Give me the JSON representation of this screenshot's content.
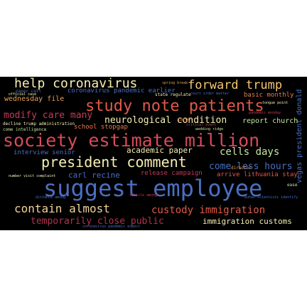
{
  "word_cloud": {
    "background": "#000000",
    "words": [
      {
        "text": "help coronavirus",
        "color": "#f6f0b4"
      },
      {
        "text": "forward trump",
        "color": "#f3c775"
      },
      {
        "text": "wednesday file",
        "color": "#e8a25a"
      },
      {
        "text": "coronavirus pandemic earlier",
        "color": "#4a6fc2"
      },
      {
        "text": "basic monthly",
        "color": "#e87a4e"
      },
      {
        "text": "study note patients",
        "color": "#e05a4a"
      },
      {
        "text": "modify care many",
        "color": "#c43a5a"
      },
      {
        "text": "neurological condition",
        "color": "#f6f0b4"
      },
      {
        "text": "report church",
        "color": "#c8e6a0"
      },
      {
        "text": "school stopgap",
        "color": "#e87a4e"
      },
      {
        "text": "society estimate million",
        "color": "#d84a5a"
      },
      {
        "text": "academic paper",
        "color": "#f6f0b4"
      },
      {
        "text": "cells days",
        "color": "#c8e6a0"
      },
      {
        "text": "president comment",
        "color": "#f6f0b4"
      },
      {
        "text": "interview senior",
        "color": "#4a6fc2"
      },
      {
        "text": "come less hours",
        "color": "#4a6fc2"
      },
      {
        "text": "carl recine",
        "color": "#4a6fc2"
      },
      {
        "text": "release campaign",
        "color": "#c43a5a"
      },
      {
        "text": "arrive lithuania stay",
        "color": "#e05a4a"
      },
      {
        "text": "suggest employee",
        "color": "#4a6fc2"
      },
      {
        "text": "contain almost",
        "color": "#f3d29a"
      },
      {
        "text": "custody immigration",
        "color": "#e05a4a"
      },
      {
        "text": "temporarily close public",
        "color": "#b8304e"
      },
      {
        "text": "immigration customs",
        "color": "#f6f0b4"
      },
      {
        "text": "vegas president donald",
        "color": "#4a6fc2"
      },
      {
        "text": "spring break",
        "color": "#e8a25a"
      },
      {
        "text": "state regulate",
        "color": "#f6f0b4"
      },
      {
        "text": "paper call",
        "color": "#4a6fc2"
      },
      {
        "text": "court order matter",
        "color": "#4a6fc2"
      },
      {
        "text": "tongue point",
        "color": "#f6f0b4"
      },
      {
        "text": "decline trump administration",
        "color": "#f6f0b4"
      },
      {
        "text": "come intelligence",
        "color": "#c8e6a0"
      },
      {
        "text": "pandemic monday",
        "color": "#c43a5a"
      },
      {
        "text": "number visit complaint",
        "color": "#f6f0b4"
      },
      {
        "text": "distance among",
        "color": "#4a6fc2"
      },
      {
        "text": "wuhan scientists identify",
        "color": "#4a6fc2"
      },
      {
        "text": "critical event",
        "color": "#c43a5a"
      },
      {
        "text": "vehicle among",
        "color": "#c43a5a"
      },
      {
        "text": "wedding ridge",
        "color": "#c8e6a0"
      },
      {
        "text": "official case",
        "color": "#f6f0b4"
      },
      {
        "text": "target",
        "color": "#e87a4e"
      },
      {
        "text": "ease",
        "color": "#c8e6a0"
      },
      {
        "text": "director",
        "color": "#e8a25a"
      },
      {
        "text": "coronavirus pandemic expect",
        "color": "#4a6fc2"
      }
    ]
  }
}
